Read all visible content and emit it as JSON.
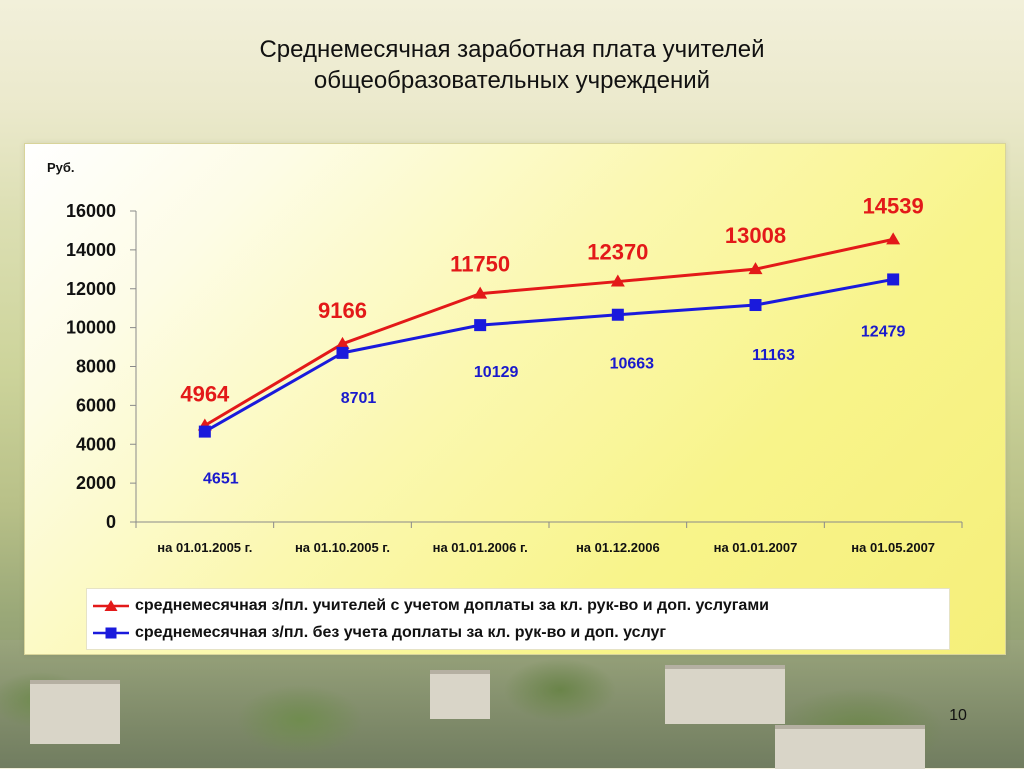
{
  "slide": {
    "title_line1": "Среднемесячная заработная плата учителей",
    "title_line2": "общеобразовательных учреждений",
    "page_number": "10"
  },
  "chart_data": {
    "type": "line",
    "unit_label": "Руб.",
    "categories": [
      "на 01.01.2005 г.",
      "на 01.10.2005 г.",
      "на 01.01.2006 г.",
      "на 01.12.2006",
      "на 01.01.2007",
      "на 01.05.2007"
    ],
    "ylim": [
      0,
      16000
    ],
    "yticks": [
      0,
      2000,
      4000,
      6000,
      8000,
      10000,
      12000,
      14000,
      16000
    ],
    "series": [
      {
        "name": "среднемесячная з/пл. учителей с учетом доплаты за кл. рук-во и доп. услугами",
        "color": "#e31919",
        "marker": "triangle",
        "values": [
          4964,
          9166,
          11750,
          12370,
          13008,
          14539
        ]
      },
      {
        "name": "среднемесячная з/пл. без учета доплаты за кл. рук-во и доп. услуг",
        "color": "#1a1adc",
        "marker": "square",
        "values": [
          4651,
          8701,
          10129,
          10663,
          11163,
          12479
        ]
      }
    ],
    "legend_position": "bottom"
  }
}
